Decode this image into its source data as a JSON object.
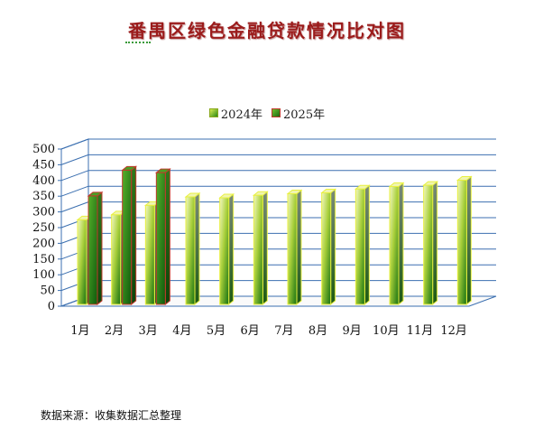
{
  "title": "番禺区绿色金融贷款情况比对图",
  "source_note": "数据来源：收集数据汇总整理",
  "chart_data": {
    "type": "bar",
    "title": "番禺区绿色金融贷款情况比对图",
    "categories": [
      "1月",
      "2月",
      "3月",
      "4月",
      "5月",
      "6月",
      "7月",
      "8月",
      "9月",
      "10月",
      "11月",
      "12月"
    ],
    "series": [
      {
        "name": "2024年",
        "values": [
          292,
          308,
          338,
          365,
          362,
          370,
          375,
          378,
          390,
          398,
          402,
          418
        ]
      },
      {
        "name": "2025年",
        "values": [
          368,
          450,
          442,
          null,
          null,
          null,
          null,
          null,
          null,
          null,
          null,
          null
        ]
      }
    ],
    "y_ticks": [
      "0",
      "50",
      "100",
      "150",
      "200",
      "250",
      "300",
      "350",
      "400",
      "450",
      "500"
    ],
    "ylim": [
      0,
      500
    ],
    "grid": true,
    "legend_position": "top-center",
    "colors": {
      "series_2024_light": "#e4f06a",
      "series_2024_dark": "#1f7a12",
      "series_2024_edge": "#e8f040",
      "series_2025_light": "#5db62a",
      "series_2025_dark": "#1b6a12",
      "series_2025_edge": "#c0392b",
      "grid": "#3b6fb0"
    }
  }
}
